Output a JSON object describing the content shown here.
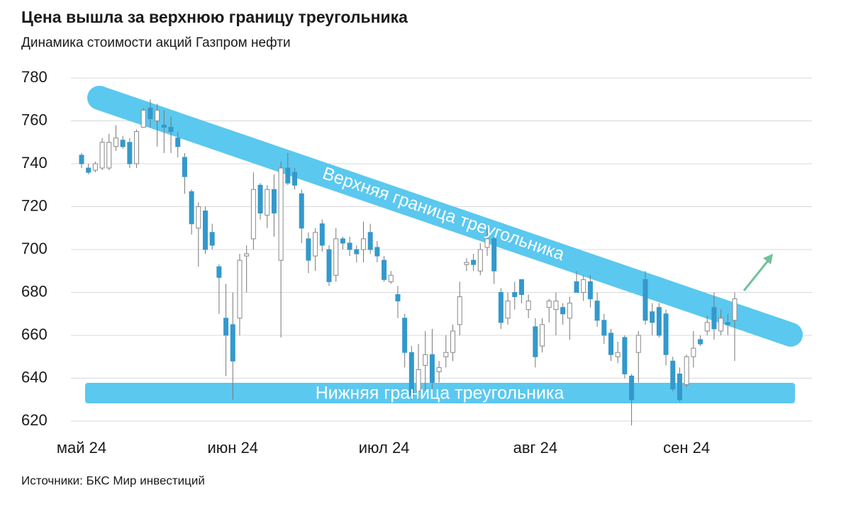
{
  "chart_data": {
    "type": "candlestick",
    "title": "Цена вышла за верхнюю границу треугольника",
    "subtitle": "Динамика стоимости акций Газпром нефти",
    "source": "Источники: БКС Мир инвестиций",
    "upper_band_label": "Верхняя граница треугольника",
    "lower_band_label": "Нижняя граница треугольника",
    "up_color": "#ffffff",
    "down_color": "#3399cc",
    "band_color": "#5bc8ef",
    "arrow_color": "#6fc29a",
    "grid": true,
    "ylim": [
      620,
      780
    ],
    "yticks": [
      620,
      640,
      660,
      680,
      700,
      720,
      740,
      760,
      780
    ],
    "categories": [
      "май 24",
      null,
      null,
      null,
      null,
      null,
      null,
      null,
      null,
      null,
      null,
      null,
      null,
      null,
      null,
      null,
      null,
      null,
      null,
      null,
      null,
      null,
      "июн 24",
      null,
      null,
      null,
      null,
      null,
      null,
      null,
      null,
      null,
      null,
      null,
      null,
      null,
      null,
      null,
      null,
      null,
      null,
      null,
      null,
      null,
      "июл 24",
      null,
      null,
      null,
      null,
      null,
      null,
      null,
      null,
      null,
      null,
      null,
      null,
      null,
      null,
      null,
      null,
      null,
      null,
      null,
      null,
      null,
      "авг 24",
      null,
      null,
      null,
      null,
      null,
      null,
      null,
      null,
      null,
      null,
      null,
      null,
      null,
      null,
      null,
      null,
      null,
      null,
      null,
      null,
      null,
      "сен 24",
      null,
      null,
      null,
      null,
      null,
      null,
      null
    ],
    "open": [
      744,
      738,
      737,
      738,
      738,
      748,
      751,
      750,
      740,
      757,
      766,
      760,
      758,
      757,
      752,
      743,
      727,
      710,
      718,
      708,
      692,
      668,
      665,
      668,
      697,
      705,
      730,
      716,
      728,
      695,
      738,
      736,
      726,
      705,
      697,
      712,
      700,
      688,
      705,
      703,
      700,
      700,
      708,
      701,
      695,
      685,
      679,
      668,
      652,
      634,
      646,
      651,
      643,
      650,
      652,
      665,
      693,
      695,
      690,
      701,
      705,
      680,
      668,
      680,
      686,
      672,
      664,
      655,
      673,
      672,
      673,
      668,
      685,
      680,
      685,
      676,
      667,
      661,
      650,
      659,
      641,
      652,
      686,
      671,
      673,
      670,
      648,
      642,
      637,
      650,
      658,
      662,
      673,
      662,
      666,
      667
    ],
    "high": [
      745,
      740,
      741,
      752,
      754,
      758,
      753,
      752,
      756,
      766,
      770,
      768,
      765,
      762,
      755,
      745,
      728,
      722,
      720,
      712,
      693,
      684,
      680,
      698,
      702,
      736,
      731,
      730,
      735,
      741,
      745,
      738,
      728,
      708,
      710,
      714,
      702,
      710,
      706,
      706,
      702,
      713,
      712,
      704,
      697,
      690,
      683,
      670,
      655,
      656,
      662,
      663,
      648,
      660,
      665,
      685,
      696,
      698,
      703,
      710,
      706,
      682,
      680,
      685,
      686,
      679,
      668,
      668,
      677,
      680,
      675,
      678,
      690,
      688,
      688,
      680,
      670,
      663,
      657,
      660,
      642,
      662,
      690,
      675,
      675,
      672,
      650,
      645,
      651,
      662,
      660,
      669,
      680,
      672,
      670,
      680
    ],
    "low": [
      738,
      735,
      736,
      737,
      737,
      746,
      747,
      738,
      738,
      757,
      757,
      748,
      745,
      745,
      743,
      726,
      707,
      692,
      698,
      700,
      670,
      641,
      630,
      660,
      680,
      700,
      714,
      710,
      706,
      659,
      730,
      728,
      703,
      689,
      690,
      699,
      683,
      685,
      700,
      697,
      694,
      694,
      698,
      694,
      685,
      684,
      668,
      645,
      630,
      630,
      634,
      634,
      638,
      645,
      648,
      660,
      690,
      690,
      688,
      697,
      684,
      663,
      665,
      672,
      675,
      668,
      645,
      652,
      666,
      660,
      665,
      658,
      680,
      676,
      673,
      664,
      656,
      648,
      647,
      640,
      618,
      638,
      665,
      660,
      659,
      646,
      634,
      629,
      636,
      645,
      655,
      660,
      658,
      660,
      660,
      648
    ],
    "close": [
      740,
      736,
      740,
      750,
      750,
      752,
      748,
      740,
      755,
      765,
      761,
      765,
      757,
      755,
      748,
      734,
      712,
      720,
      700,
      702,
      687,
      660,
      648,
      695,
      698,
      728,
      717,
      728,
      717,
      738,
      731,
      730,
      710,
      695,
      708,
      702,
      685,
      705,
      703,
      700,
      698,
      705,
      700,
      697,
      686,
      688,
      676,
      652,
      632,
      644,
      651,
      638,
      645,
      652,
      662,
      678,
      694,
      693,
      700,
      705,
      690,
      666,
      676,
      678,
      679,
      676,
      650,
      665,
      676,
      676,
      670,
      675,
      680,
      686,
      677,
      667,
      660,
      651,
      652,
      642,
      630,
      660,
      667,
      666,
      660,
      651,
      635,
      630,
      650,
      654,
      656,
      666,
      663,
      668,
      665,
      677
    ]
  }
}
